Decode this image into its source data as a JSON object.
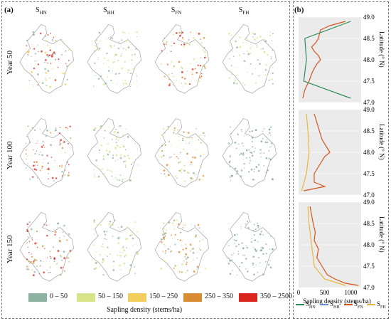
{
  "panel_a": {
    "label": "(a)",
    "column_titles": [
      {
        "main": "S",
        "sub": "HN"
      },
      {
        "main": "S",
        "sub": "HH"
      },
      {
        "main": "S",
        "sub": "FN"
      },
      {
        "main": "S",
        "sub": "FH"
      }
    ],
    "row_labels": [
      "Year 50",
      "Year 100",
      "Year 150"
    ],
    "legend": {
      "title": "Sapling density (stems/ha)",
      "items": [
        {
          "label": "0 – 50",
          "color": "#8fb3a3"
        },
        {
          "label": "50 – 150",
          "color": "#d7e48a"
        },
        {
          "label": "150 – 250",
          "color": "#f2cf5c"
        },
        {
          "label": "250 – 350",
          "color": "#d98c32"
        },
        {
          "label": "350 – 2500",
          "color": "#d9261c"
        }
      ]
    }
  },
  "panel_b": {
    "label": "(b)",
    "ylabel": "Latitude (° N)",
    "xlabel": "Sapling density (stems/ha)",
    "legend": [
      {
        "main": "S",
        "sub": "HN",
        "color": "#2e8b57"
      },
      {
        "main": "S",
        "sub": "HH",
        "color": "#6a8fd0"
      },
      {
        "main": "S",
        "sub": "FN",
        "color": "#d2541e"
      },
      {
        "main": "S",
        "sub": "FH",
        "color": "#e6b83c"
      }
    ]
  },
  "chart_data": [
    {
      "type": "line",
      "title": "Year 50",
      "xlabel": "",
      "ylabel": "Latitude (° N)",
      "ylim": [
        47.0,
        49.0
      ],
      "xlim": [
        0,
        1200
      ],
      "yticks": [
        "47.0",
        "47.5",
        "48.0",
        "48.5",
        "49.0"
      ],
      "series": [
        {
          "name": "SFN",
          "y": [
            47.1,
            47.3,
            47.5,
            47.7,
            47.8,
            47.9,
            48.0,
            48.1,
            48.2,
            48.3,
            48.4,
            48.5,
            48.6,
            48.7,
            48.8,
            48.9
          ],
          "x": [
            80,
            120,
            200,
            260,
            300,
            350,
            420,
            380,
            300,
            250,
            330,
            380,
            400,
            420,
            600,
            900
          ]
        },
        {
          "name": "SHN",
          "y": [
            47.1,
            47.5,
            48.0,
            48.5,
            48.9
          ],
          "x": [
            1000,
            100,
            150,
            120,
            1000
          ]
        }
      ]
    },
    {
      "type": "line",
      "title": "Year 100",
      "xlabel": "",
      "ylabel": "Latitude (° N)",
      "ylim": [
        47.0,
        49.0
      ],
      "xlim": [
        0,
        1200
      ],
      "yticks": [
        "47.0",
        "47.5",
        "48.0",
        "48.5",
        "49.0"
      ],
      "series": [
        {
          "name": "SFN",
          "y": [
            47.1,
            47.2,
            47.3,
            47.5,
            47.7,
            47.9,
            48.0,
            48.1,
            48.3,
            48.5,
            48.7,
            48.9
          ],
          "x": [
            100,
            500,
            300,
            300,
            400,
            500,
            600,
            550,
            450,
            400,
            350,
            300
          ]
        },
        {
          "name": "SFH",
          "y": [
            47.1,
            47.5,
            48.0,
            48.5,
            48.9
          ],
          "x": [
            60,
            150,
            200,
            180,
            150
          ]
        }
      ]
    },
    {
      "type": "line",
      "title": "Year 150",
      "xlabel": "Sapling density (stems/ha)",
      "ylabel": "Latitude (° N)",
      "ylim": [
        47.0,
        49.0
      ],
      "xlim": [
        0,
        1200
      ],
      "xticks": [
        "0",
        "500",
        "1000"
      ],
      "yticks": [
        "47.0",
        "47.5",
        "48.0",
        "48.5",
        "49.0"
      ],
      "series": [
        {
          "name": "SFN",
          "y": [
            47.05,
            47.1,
            47.2,
            47.3,
            47.5,
            47.7,
            47.9,
            48.1,
            48.3,
            48.5,
            48.7,
            48.9
          ],
          "x": [
            1150,
            900,
            700,
            550,
            450,
            350,
            380,
            300,
            320,
            280,
            250,
            220
          ]
        },
        {
          "name": "SFH",
          "y": [
            47.05,
            47.2,
            47.5,
            48.0,
            48.5,
            48.9
          ],
          "x": [
            900,
            500,
            300,
            250,
            200,
            180
          ]
        }
      ]
    }
  ]
}
